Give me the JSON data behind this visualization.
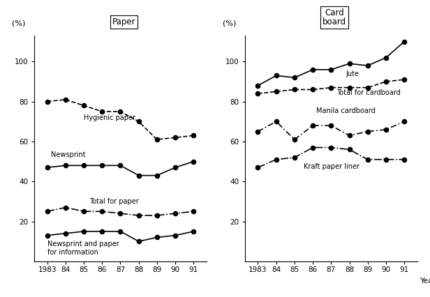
{
  "years": [
    1983,
    1984,
    1985,
    1986,
    1987,
    1988,
    1989,
    1990,
    1991
  ],
  "paper": {
    "title": "Paper",
    "hygienic_paper": [
      80,
      81,
      78,
      75,
      75,
      70,
      61,
      62,
      63
    ],
    "newsprint": [
      47,
      48,
      48,
      48,
      48,
      43,
      43,
      47,
      50
    ],
    "total_for_paper": [
      25,
      27,
      25,
      25,
      24,
      23,
      23,
      24,
      25
    ],
    "newsprint_info": [
      13,
      14,
      15,
      15,
      15,
      10,
      12,
      13,
      15
    ]
  },
  "cardboard": {
    "title": "Card\nboard",
    "jute": [
      88,
      93,
      92,
      96,
      96,
      99,
      98,
      102,
      110
    ],
    "total_for_cardboard": [
      84,
      85,
      86,
      86,
      87,
      87,
      87,
      90,
      91
    ],
    "manila_cardboard": [
      65,
      70,
      61,
      68,
      68,
      63,
      65,
      66,
      70
    ],
    "kraft_paper_liner": [
      47,
      51,
      52,
      57,
      57,
      56,
      51,
      51,
      51
    ]
  },
  "ylim": [
    0,
    113
  ],
  "yticks": [
    20,
    40,
    60,
    80,
    100
  ],
  "ylabel": "(%)",
  "xlabel_right": "Year",
  "background_color": "#ffffff",
  "line_color": "#000000",
  "xtick_labels": [
    "1983",
    "84",
    "85",
    "86",
    "87",
    "88",
    "89",
    "90",
    "91"
  ]
}
